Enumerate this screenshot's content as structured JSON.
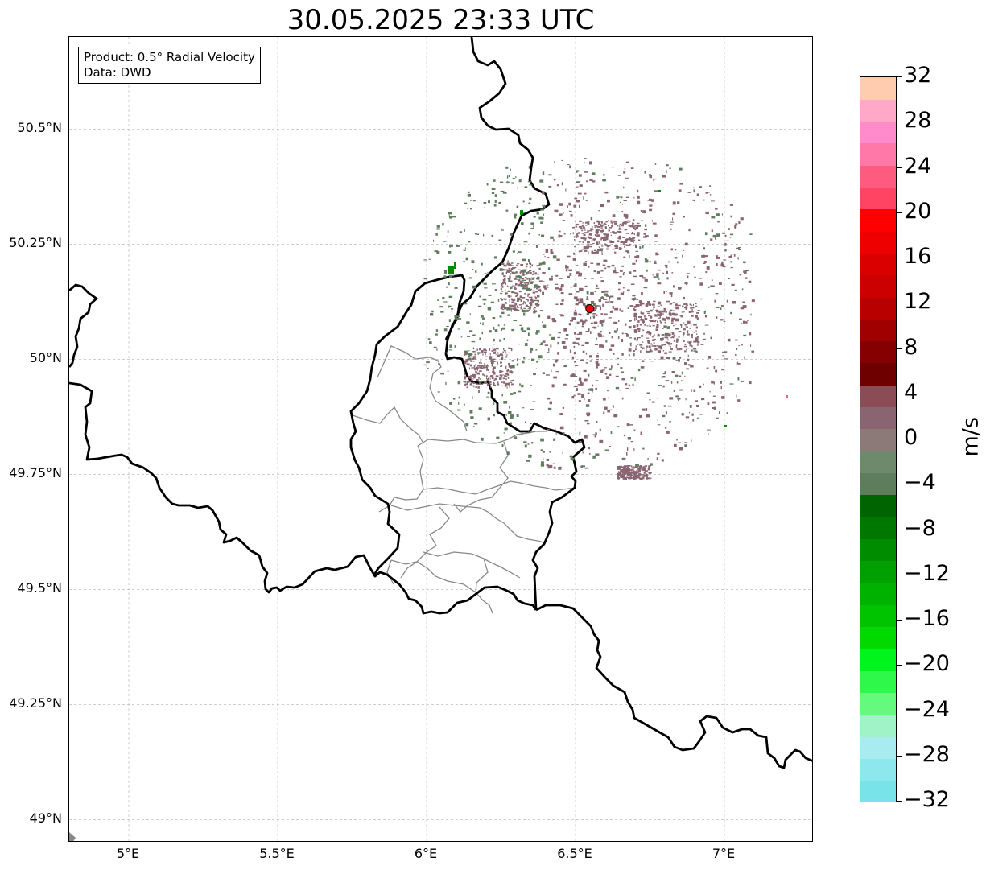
{
  "title": "30.05.2025 23:33 UTC",
  "info_box": {
    "product": "Product: 0.5° Radial Velocity",
    "data": "Data: DWD"
  },
  "map": {
    "lon_range": [
      4.8,
      7.3
    ],
    "lat_range": [
      48.95,
      50.7
    ],
    "lat_ticks": [
      {
        "value": 50.5,
        "label": "50.5°N"
      },
      {
        "value": 50.25,
        "label": "50.25°N"
      },
      {
        "value": 50.0,
        "label": "50°N"
      },
      {
        "value": 49.75,
        "label": "49.75°N"
      },
      {
        "value": 49.5,
        "label": "49.5°N"
      },
      {
        "value": 49.25,
        "label": "49.25°N"
      },
      {
        "value": 49.0,
        "label": "49°N"
      }
    ],
    "lon_ticks": [
      {
        "value": 5.0,
        "label": "5°E"
      },
      {
        "value": 5.5,
        "label": "5.5°E"
      },
      {
        "value": 6.0,
        "label": "6°E"
      },
      {
        "value": 6.5,
        "label": "6.5°E"
      },
      {
        "value": 7.0,
        "label": "7°E"
      }
    ],
    "radar_site": {
      "lon": 6.548,
      "lat": 50.11,
      "color": "#ff0000"
    },
    "gridlines": true
  },
  "colorbar": {
    "unit": "m/s",
    "min": -32,
    "max": 32,
    "tick_labels": [
      {
        "value": 32,
        "label": "32"
      },
      {
        "value": 28,
        "label": "28"
      },
      {
        "value": 24,
        "label": "24"
      },
      {
        "value": 20,
        "label": "20"
      },
      {
        "value": 16,
        "label": "16"
      },
      {
        "value": 12,
        "label": "12"
      },
      {
        "value": 8,
        "label": "8"
      },
      {
        "value": 4,
        "label": "4"
      },
      {
        "value": 0,
        "label": "0"
      },
      {
        "value": -4,
        "label": "−4"
      },
      {
        "value": -8,
        "label": "−8"
      },
      {
        "value": -12,
        "label": "−12"
      },
      {
        "value": -16,
        "label": "−16"
      },
      {
        "value": -20,
        "label": "−20"
      },
      {
        "value": -24,
        "label": "−24"
      },
      {
        "value": -28,
        "label": "−28"
      },
      {
        "value": -32,
        "label": "−32"
      }
    ],
    "colors": [
      "#78e3e8",
      "#8ce8ec",
      "#a9ecef",
      "#9ff3c6",
      "#64fa7e",
      "#2ef94a",
      "#00f51c",
      "#00da00",
      "#00c400",
      "#00b200",
      "#00a000",
      "#008c00",
      "#007700",
      "#006400",
      "#5e7d5d",
      "#6e8a6c",
      "#8c7a78",
      "#8a6470",
      "#8a4d55",
      "#6e0000",
      "#850000",
      "#a00000",
      "#b80000",
      "#cc0000",
      "#db0000",
      "#ee0000",
      "#ff0000",
      "#ff4363",
      "#ff5a80",
      "#ff78a8",
      "#ff8acc",
      "#ffa8c8",
      "#ffccb0"
    ]
  },
  "velocity_colors": {
    "inbound": "#5e7d5d",
    "outbound": "#8a6470",
    "strong_inbound": "#008c00",
    "strong_outbound": "#ff5a80"
  }
}
